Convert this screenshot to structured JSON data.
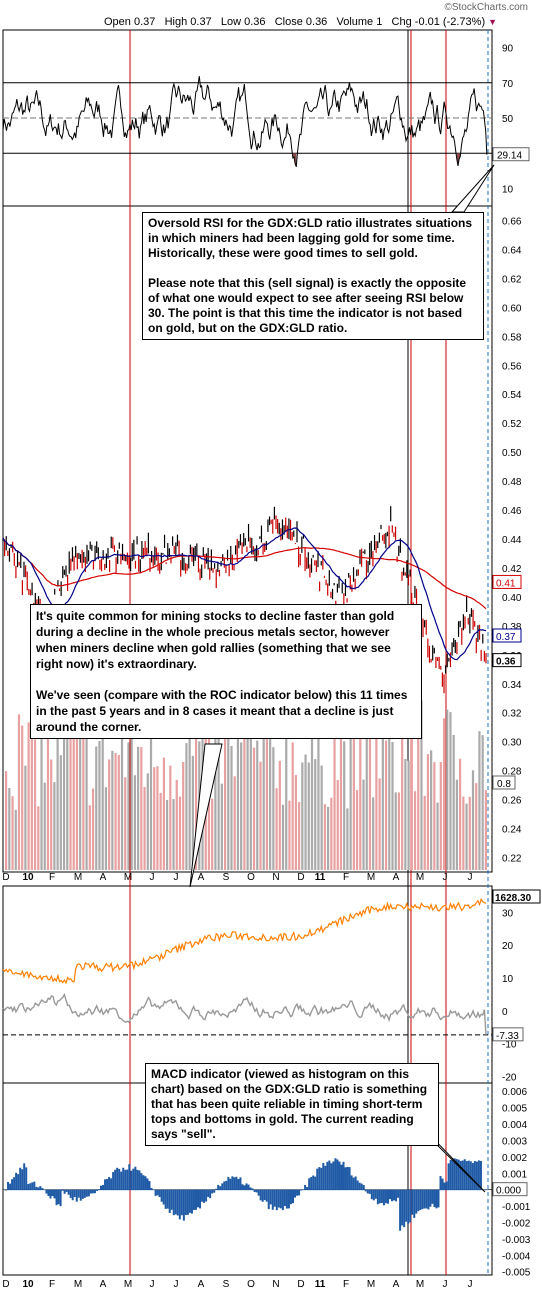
{
  "header": {
    "brand": "©StockCharts.com",
    "open_label": "Open",
    "open": "0.37",
    "high_label": "High",
    "high": "0.37",
    "low_label": "Low",
    "low": "0.36",
    "close_label": "Close",
    "close": "0.36",
    "volume_label": "Volume",
    "volume": "1",
    "chg_label": "Chg",
    "chg": "-0.01 (-2.73%)"
  },
  "annotations": {
    "rsi_p1": "Oversold RSI for the GDX:GLD ratio illustrates situations in which miners had been lagging gold for some time. Historically, these were good times to sell gold.",
    "rsi_p2": "Please note that this (sell signal) is exactly the opposite of what one would expect to see after seeing RSI below 30. The point is that this time the indicator is not based on gold, but on the GDX:GLD ratio.",
    "price_p1": "It's quite common for mining stocks to decline faster than gold during a decline in the whole precious metals sector, however when miners decline when gold rallies (something that we see right now) it's extraordinary.",
    "price_p2": "We've seen (compare with the ROC indicator below) this 11 times in the past 5 years and in 8 cases it meant that a decline is just around the corner.",
    "macd_p1": "MACD indicator (viewed as histogram on this chart) based on the GDX:GLD ratio is something that has been quite reliable in timing short-term tops and bottoms in gold. The current reading says \"sell\"."
  },
  "chart_data": [
    {
      "panel": "rsi",
      "type": "line",
      "y_ticks": [
        "90",
        "70",
        "50",
        "30",
        "10"
      ],
      "reference_levels": [
        70,
        50,
        30
      ],
      "range": [
        0,
        100
      ],
      "last_value_label": "29.14",
      "last_value": 29.14,
      "color": "#000000",
      "fill_below_30": "#8b4a4a"
    },
    {
      "panel": "price",
      "type": "line",
      "y_ticks": [
        "0.66",
        "0.64",
        "0.62",
        "0.60",
        "0.58",
        "0.56",
        "0.54",
        "0.52",
        "0.50",
        "0.48",
        "0.46",
        "0.44",
        "0.42",
        "0.40",
        "0.38",
        "0.36",
        "0.34",
        "0.32",
        "0.30",
        "0.28",
        "0.26",
        "0.24",
        "0.22"
      ],
      "range": [
        0.21,
        0.67
      ],
      "series": [
        {
          "color": "#d40000",
          "last_label": "0.41",
          "last": 0.41
        },
        {
          "color": "#00008b",
          "last_label": "0.37",
          "last": 0.37
        },
        {
          "color": "#000000",
          "last_label": "0.36",
          "last": 0.36
        }
      ],
      "approx_path_key_points": [
        [
          0,
          0.44
        ],
        [
          0.09,
          0.38
        ],
        [
          0.15,
          0.43
        ],
        [
          0.35,
          0.43
        ],
        [
          0.43,
          0.42
        ],
        [
          0.58,
          0.45
        ],
        [
          0.7,
          0.4
        ],
        [
          0.8,
          0.45
        ],
        [
          0.87,
          0.38
        ],
        [
          0.91,
          0.34
        ],
        [
          0.96,
          0.39
        ],
        [
          1.0,
          0.36
        ]
      ]
    },
    {
      "panel": "volume",
      "type": "bar",
      "y_range": [
        0,
        20
      ],
      "last_value_label": "0.8",
      "colors": {
        "up": "#aaaaaa",
        "down": "#e8a0a0"
      }
    },
    {
      "panel": "roc",
      "type": "line",
      "y_ticks": [
        "30",
        "20",
        "10",
        "0",
        "-10",
        "-20"
      ],
      "range": [
        -22,
        38
      ],
      "reference_level": -7.33,
      "series": [
        {
          "color": "#ff7f00",
          "last_label": "1628.30"
        },
        {
          "color": "#999999",
          "last_label": "-7.33"
        }
      ]
    },
    {
      "panel": "macd",
      "type": "bar",
      "y_ticks": [
        "0.006",
        "0.005",
        "0.004",
        "0.003",
        "0.002",
        "0.001",
        "0.000",
        "-0.001",
        "-0.002",
        "-0.003",
        "-0.004",
        "-0.005"
      ],
      "range": [
        -0.0052,
        0.0065
      ],
      "last_value_label": "0.000",
      "color": "#1f5aa6"
    }
  ],
  "x_axis": {
    "labels": [
      "D",
      "10",
      "F",
      "M",
      "A",
      "M",
      "J",
      "J",
      "A",
      "S",
      "O",
      "N",
      "D",
      "11",
      "F",
      "M",
      "A",
      "M",
      "J",
      "J"
    ],
    "bold_labels": [
      "10",
      "11"
    ]
  },
  "markers": {
    "red_vertical_color": "#cc0000",
    "black_vertical_color": "#000000",
    "current_dashed_color": "#1f6fd0"
  }
}
